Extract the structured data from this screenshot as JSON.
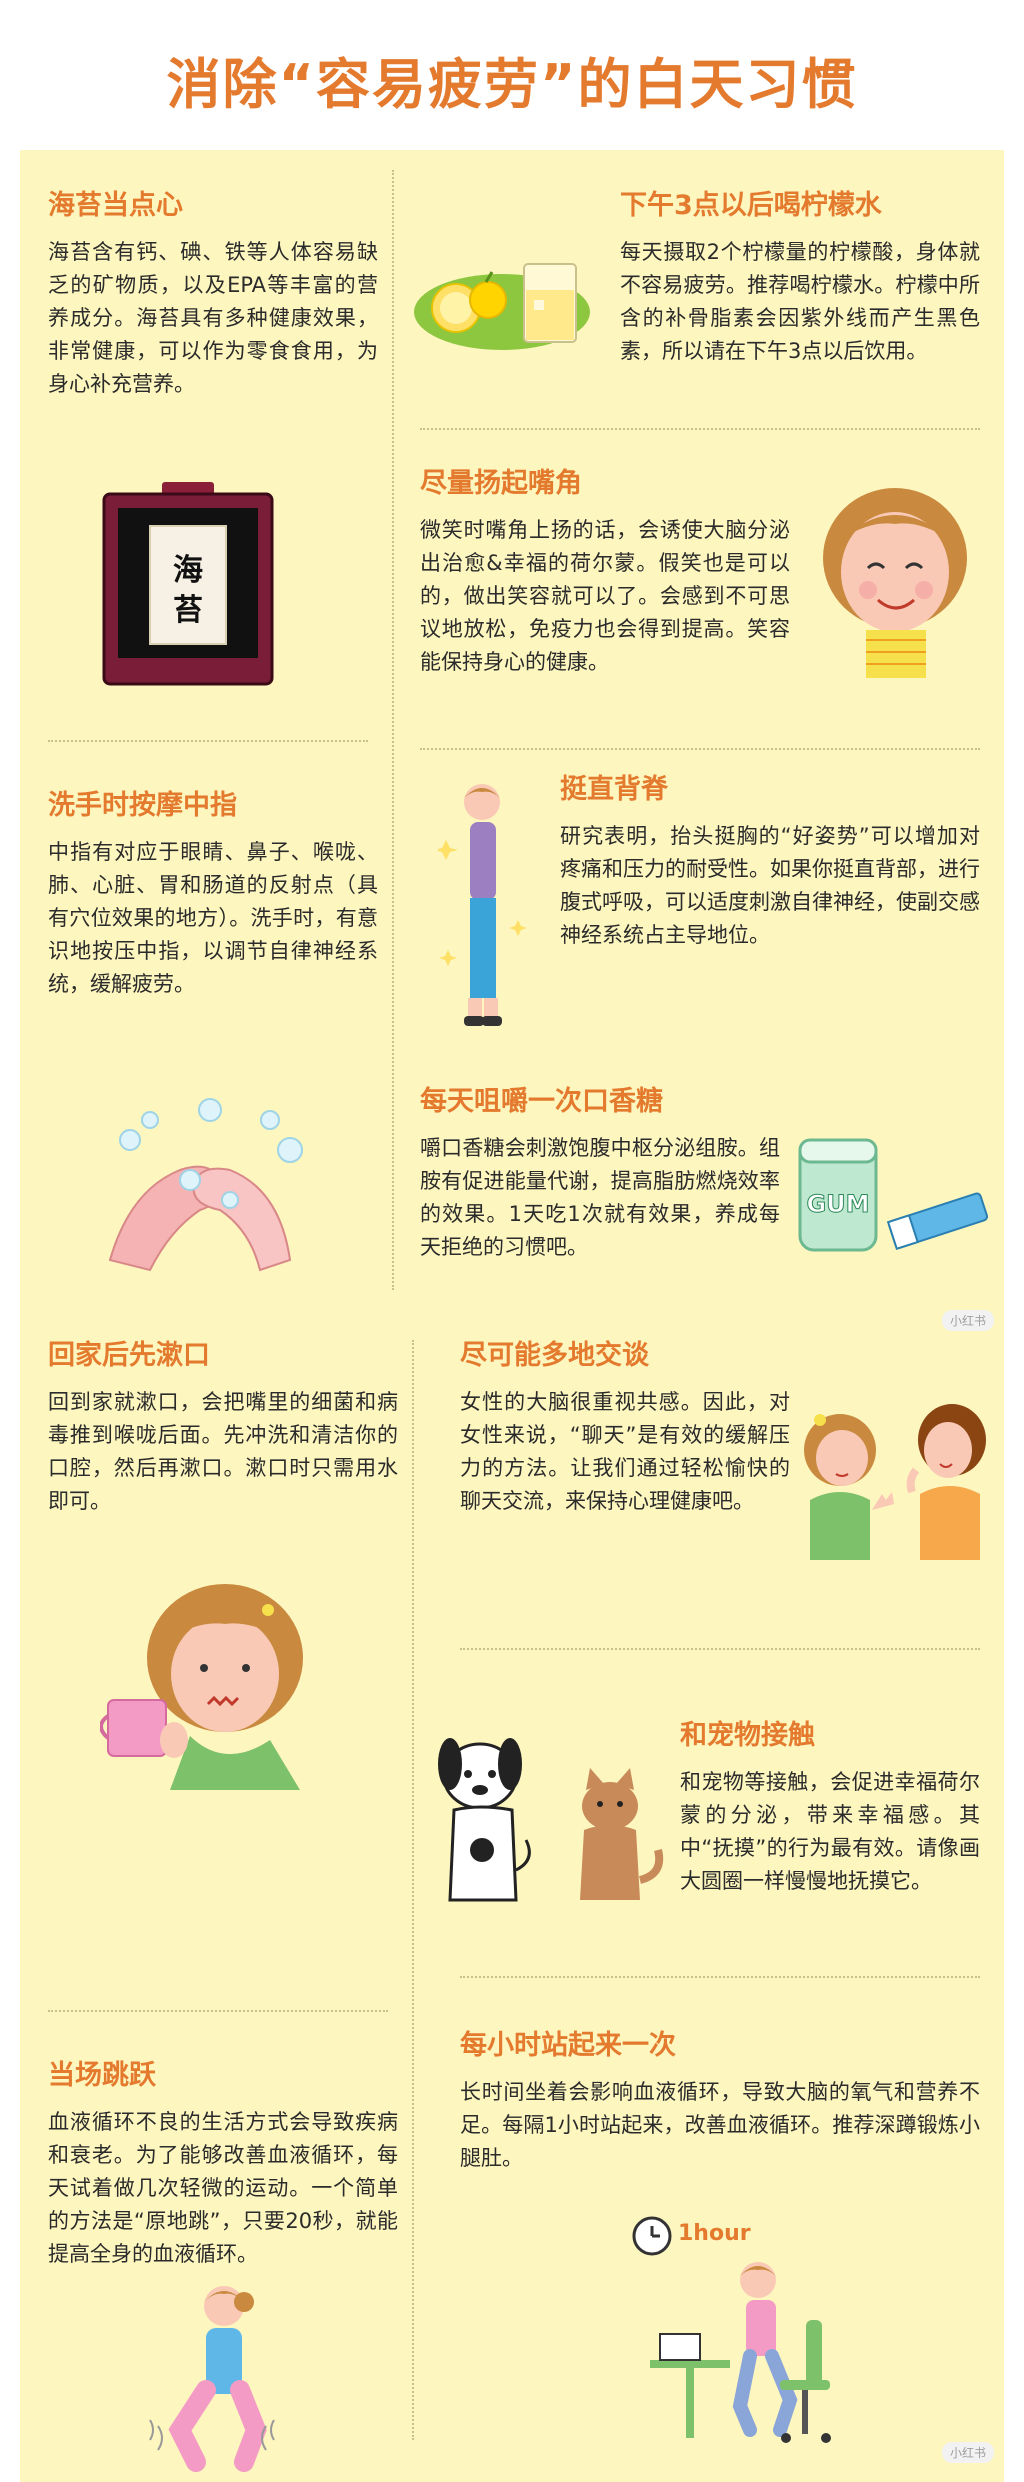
{
  "title": "消除“容易疲劳”的白天习惯",
  "sections": {
    "nori": {
      "title": "海苔当点心",
      "body": "海苔含有钙、碘、铁等人体容易缺乏的矿物质，以及EPA等丰富的营养成分。海苔具有多种健康效果，非常健康，可以作为零食食用，为身心补充营养。",
      "label": "海苔"
    },
    "lemon": {
      "title": "下午3点以后喝柠檬水",
      "body": "每天摄取2个柠檬量的柠檬酸，身体就不容易疲劳。推荐喝柠檬水。柠檬中所含的补骨脂素会因紫外线而产生黑色素，所以请在下午3点以后饮用。"
    },
    "smile": {
      "title": "尽量扬起嘴角",
      "body": "微笑时嘴角上扬的话，会诱使大脑分泌出治愈&幸福的荷尔蒙。假笑也是可以的，做出笑容就可以了。会感到不可思议地放松，免疫力也会得到提高。笑容能保持身心的健康。"
    },
    "finger": {
      "title": "洗手时按摩中指",
      "body": "中指有对应于眼睛、鼻子、喉咙、肺、心脏、胃和肠道的反射点（具有穴位效果的地方）。洗手时，有意识地按压中指，以调节自律神经系统，缓解疲劳。"
    },
    "posture": {
      "title": "挺直背脊",
      "body": "研究表明，抬头挺胸的“好姿势”可以增加对疼痛和压力的耐受性。如果你挺直背部，进行腹式呼吸，可以适度刺激自律神经，使副交感神经系统占主导地位。"
    },
    "gum": {
      "title": "每天咀嚼一次口香糖",
      "body": "嚼口香糖会刺激饱腹中枢分泌组胺。组胺有促进能量代谢，提高脂肪燃烧效率的效果。1天吃1次就有效果，养成每天拒绝的习惯吧。",
      "label": "GUM"
    },
    "gargle": {
      "title": "回家后先漱口",
      "body": "回到家就漱口，会把嘴里的细菌和病毒推到喉咙后面。先冲洗和清洁你的口腔，然后再漱口。漱口时只需用水即可。"
    },
    "chat": {
      "title": "尽可能多地交谈",
      "body": "女性的大脑很重视共感。因此，对女性来说，“聊天”是有效的缓解压力的方法。让我们通过轻松愉快的聊天交流，来保持心理健康吧。"
    },
    "pets": {
      "title": "和宠物接触",
      "body": "和宠物等接触，会促进幸福荷尔蒙的分泌，带来幸福感。其中“抚摸”的行为最有效。请像画大圆圈一样慢慢地抚摸它。"
    },
    "jump": {
      "title": "当场跳跃",
      "body": "血液循环不良的生活方式会导致疾病和衰老。为了能够改善血液循环，每天试着做几次轻微的运动。一个简单的方法是“原地跳”，只要20秒，就能提高全身的血液循环。"
    },
    "stand": {
      "title": "每小时站起来一次",
      "body": "长时间坐着会影响血液循环，导致大脑的氧气和营养不足。每隔1小时站起来，改善血液循环。推荐深蹲锻炼小腿肚。",
      "label": "1hour"
    }
  },
  "watermark": "小红书",
  "colors": {
    "accent": "#e47a2e",
    "panel": "#fdf6bf",
    "text": "#2b2b2b"
  }
}
